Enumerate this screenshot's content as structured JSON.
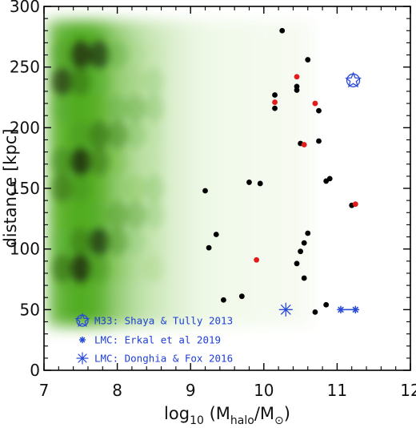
{
  "chart_data": {
    "type": "scatter",
    "xlabel": "log₁₀ (M_halo/M⊙)",
    "xlabel_parts": {
      "pre": "log",
      "sub1": "10",
      "mid": " (M",
      "sub2": "halo",
      "slash": "/M",
      "sub3": "⊙",
      "close": ")"
    },
    "ylabel": "distance [kpc]",
    "xlim": [
      7,
      12
    ],
    "ylim": [
      0,
      300
    ],
    "xticks": [
      "7",
      "8",
      "9",
      "10",
      "11",
      "12"
    ],
    "yticks": [
      "0",
      "50",
      "100",
      "150",
      "200",
      "250",
      "300"
    ],
    "grid": false,
    "legend_position": "bottom-left",
    "colors": {
      "black_points": "#000000",
      "red_points": "#e21b1b",
      "legend_markers": "#2a4bd7",
      "density_dark": "#1f2d10",
      "density_mid": "#4caa1a",
      "density_light": "#e9f6da"
    },
    "density_map": {
      "description_free": true,
      "x_range": [
        7.0,
        10.8
      ],
      "y_range": [
        0,
        300
      ],
      "columns": [
        {
          "x": 7.25,
          "weight": 0.82
        },
        {
          "x": 7.5,
          "weight": 1.0
        },
        {
          "x": 7.75,
          "weight": 0.86
        },
        {
          "x": 8.0,
          "weight": 0.62
        },
        {
          "x": 8.25,
          "weight": 0.45
        },
        {
          "x": 8.5,
          "weight": 0.34
        },
        {
          "x": 8.75,
          "weight": 0.24
        },
        {
          "x": 9.0,
          "weight": 0.15
        },
        {
          "x": 9.25,
          "weight": 0.09
        },
        {
          "x": 9.5,
          "weight": 0.06
        },
        {
          "x": 9.75,
          "weight": 0.05
        },
        {
          "x": 10.0,
          "weight": 0.035
        },
        {
          "x": 10.25,
          "weight": 0.02
        },
        {
          "x": 10.5,
          "weight": 0.015
        }
      ]
    },
    "series": [
      {
        "marker": "filled-circle",
        "color": "#000000",
        "points": [
          {
            "x": 10.25,
            "y": 280
          },
          {
            "x": 10.6,
            "y": 256
          },
          {
            "x": 10.45,
            "y": 234
          },
          {
            "x": 10.45,
            "y": 231
          },
          {
            "x": 10.15,
            "y": 227
          },
          {
            "x": 10.15,
            "y": 216
          },
          {
            "x": 10.75,
            "y": 214
          },
          {
            "x": 10.5,
            "y": 187
          },
          {
            "x": 10.75,
            "y": 189
          },
          {
            "x": 9.8,
            "y": 155
          },
          {
            "x": 9.95,
            "y": 154
          },
          {
            "x": 9.2,
            "y": 148
          },
          {
            "x": 10.9,
            "y": 158
          },
          {
            "x": 10.85,
            "y": 156
          },
          {
            "x": 11.2,
            "y": 136
          },
          {
            "x": 9.35,
            "y": 112
          },
          {
            "x": 10.6,
            "y": 113
          },
          {
            "x": 10.55,
            "y": 105
          },
          {
            "x": 9.25,
            "y": 101
          },
          {
            "x": 10.5,
            "y": 98
          },
          {
            "x": 10.45,
            "y": 88
          },
          {
            "x": 10.55,
            "y": 76
          },
          {
            "x": 9.7,
            "y": 61
          },
          {
            "x": 9.45,
            "y": 58
          },
          {
            "x": 10.85,
            "y": 54
          },
          {
            "x": 10.7,
            "y": 48
          }
        ]
      },
      {
        "marker": "filled-circle",
        "color": "#e21b1b",
        "points": [
          {
            "x": 10.45,
            "y": 242
          },
          {
            "x": 10.15,
            "y": 221
          },
          {
            "x": 10.7,
            "y": 220
          },
          {
            "x": 10.55,
            "y": 186
          },
          {
            "x": 11.25,
            "y": 137
          },
          {
            "x": 9.9,
            "y": 91
          }
        ]
      }
    ],
    "special_markers": [
      {
        "marker": "star-in-circle",
        "x": 11.22,
        "y": 239
      },
      {
        "marker": "asterisk",
        "x": 10.3,
        "y": 50
      },
      {
        "marker": "asterisk-small",
        "x": 11.05,
        "y": 50
      },
      {
        "marker": "asterisk-small",
        "x": 11.25,
        "y": 50
      }
    ],
    "legend": [
      {
        "marker": "star-in-circle",
        "label": "M33: Shaya & Tully 2013"
      },
      {
        "marker": "asterisk-small",
        "label": "LMC: Erkal et al 2019"
      },
      {
        "marker": "asterisk",
        "label": "LMC: Donghia & Fox 2016"
      }
    ]
  }
}
